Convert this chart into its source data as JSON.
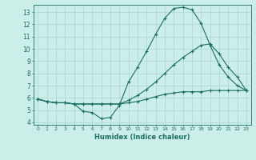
{
  "title": "",
  "xlabel": "Humidex (Indice chaleur)",
  "bg_color": "#cceee8",
  "grid_color": "#aad4ce",
  "line_color": "#1a6e64",
  "xlim": [
    -0.5,
    23.5
  ],
  "ylim": [
    3.8,
    13.6
  ],
  "yticks": [
    4,
    5,
    6,
    7,
    8,
    9,
    10,
    11,
    12,
    13
  ],
  "xticks": [
    0,
    1,
    2,
    3,
    4,
    5,
    6,
    7,
    8,
    9,
    10,
    11,
    12,
    13,
    14,
    15,
    16,
    17,
    18,
    19,
    20,
    21,
    22,
    23
  ],
  "series1_x": [
    0,
    1,
    2,
    3,
    4,
    5,
    6,
    7,
    8,
    9,
    10,
    11,
    12,
    13,
    14,
    15,
    16,
    17,
    18,
    19,
    20,
    21,
    22,
    23
  ],
  "series1_y": [
    5.9,
    5.7,
    5.6,
    5.6,
    5.5,
    5.5,
    5.5,
    5.5,
    5.5,
    5.5,
    5.6,
    5.7,
    5.9,
    6.1,
    6.3,
    6.4,
    6.5,
    6.5,
    6.5,
    6.6,
    6.6,
    6.6,
    6.6,
    6.6
  ],
  "series2_x": [
    0,
    1,
    2,
    3,
    4,
    5,
    6,
    7,
    8,
    9,
    10,
    11,
    12,
    13,
    14,
    15,
    16,
    17,
    18,
    19,
    20,
    21,
    22,
    23
  ],
  "series2_y": [
    5.9,
    5.7,
    5.6,
    5.6,
    5.5,
    4.9,
    4.8,
    4.3,
    4.4,
    5.4,
    7.3,
    8.5,
    9.8,
    11.2,
    12.5,
    13.3,
    13.4,
    13.2,
    12.1,
    10.3,
    8.7,
    7.7,
    7.0,
    6.6
  ],
  "series3_x": [
    0,
    1,
    2,
    3,
    4,
    5,
    6,
    7,
    8,
    9,
    10,
    11,
    12,
    13,
    14,
    15,
    16,
    17,
    18,
    19,
    20,
    21,
    22,
    23
  ],
  "series3_y": [
    5.9,
    5.7,
    5.6,
    5.6,
    5.5,
    5.5,
    5.5,
    5.5,
    5.5,
    5.5,
    5.8,
    6.2,
    6.7,
    7.3,
    8.0,
    8.7,
    9.3,
    9.8,
    10.3,
    10.4,
    9.6,
    8.5,
    7.7,
    6.6
  ],
  "figsize": [
    3.2,
    2.0
  ],
  "dpi": 100
}
